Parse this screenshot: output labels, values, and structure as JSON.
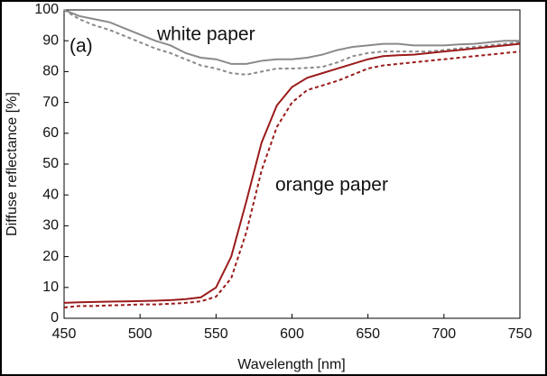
{
  "chart_data": {
    "type": "line",
    "x_label": "Wavelength [nm]",
    "y_label": "Diffuse reflectance [%]",
    "annotations": [
      "(a)",
      "white paper",
      "orange paper"
    ],
    "x": [
      450,
      460,
      470,
      480,
      490,
      500,
      510,
      520,
      530,
      540,
      550,
      560,
      570,
      580,
      590,
      600,
      610,
      620,
      630,
      640,
      650,
      660,
      670,
      680,
      690,
      700,
      710,
      720,
      730,
      740,
      750
    ],
    "series": [
      {
        "color": "#8a8a8a",
        "dash": false,
        "values": [
          100,
          98,
          97,
          96,
          94,
          92,
          90,
          88.5,
          86,
          84.5,
          84,
          82.5,
          82.5,
          83.5,
          84,
          84,
          84.5,
          85.5,
          87,
          88,
          88.5,
          89,
          89,
          88.5,
          88.5,
          88.5,
          88.8,
          89,
          89.5,
          90,
          90
        ]
      },
      {
        "color": "#8a8a8a",
        "dash": true,
        "values": [
          100,
          97,
          95,
          93.5,
          91.5,
          89.5,
          87.5,
          86,
          84,
          82,
          81,
          79.5,
          79,
          80,
          81,
          81,
          81.2,
          81.5,
          83,
          85,
          86,
          86.5,
          86.5,
          86.5,
          86.5,
          87,
          87.5,
          88,
          88.5,
          89,
          89.5
        ]
      },
      {
        "color": "#9b1b1b",
        "dash": false,
        "values": [
          5,
          5.2,
          5.3,
          5.4,
          5.5,
          5.6,
          5.7,
          5.9,
          6.2,
          6.8,
          10,
          20,
          38,
          57,
          69,
          75,
          78,
          79.5,
          81,
          82.5,
          84,
          85,
          85.3,
          85.5,
          86,
          86.5,
          87,
          87.5,
          88,
          88.5,
          89
        ]
      },
      {
        "color": "#9b1b1b",
        "dash": true,
        "values": [
          3.5,
          4,
          4,
          4.2,
          4.3,
          4.5,
          4.5,
          4.7,
          5,
          5.5,
          7,
          13,
          28,
          48,
          62,
          70,
          74,
          75.5,
          77,
          79,
          81,
          82,
          82.5,
          83,
          83.5,
          84,
          84.5,
          85,
          85.5,
          86,
          86.5
        ]
      }
    ],
    "xlim": [
      450,
      750
    ],
    "xticks": [
      450,
      500,
      550,
      600,
      650,
      700,
      750
    ],
    "ylim": [
      0,
      100
    ],
    "yticks": [
      0,
      10,
      20,
      30,
      40,
      50,
      60,
      70,
      80,
      90,
      100
    ],
    "grid": false
  }
}
